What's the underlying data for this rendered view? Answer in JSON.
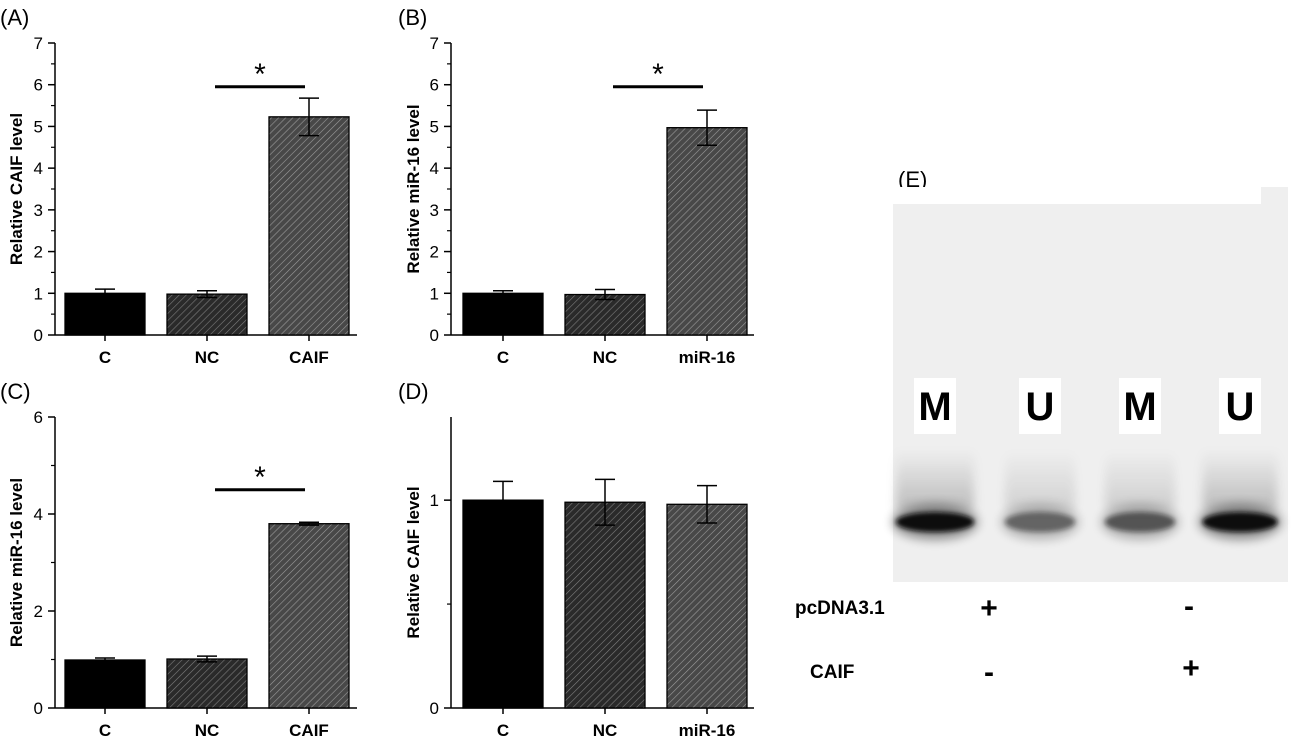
{
  "chart_data": [
    {
      "panel": "(A)",
      "type": "bar",
      "categories": [
        "C",
        "NC",
        "CAIF"
      ],
      "values": [
        1.0,
        0.98,
        5.23
      ],
      "errors": [
        0.1,
        0.08,
        0.45
      ],
      "ylabel": "Relative CAIF level",
      "ylim": [
        0,
        7
      ],
      "yticks": [
        "0",
        "1",
        "2",
        "3",
        "4",
        "5",
        "6",
        "7"
      ],
      "significance": {
        "from": 1,
        "to": 2,
        "label": "*",
        "level": 5.95
      }
    },
    {
      "panel": "(B)",
      "type": "bar",
      "categories": [
        "C",
        "NC",
        "miR-16"
      ],
      "values": [
        1.0,
        0.97,
        4.97
      ],
      "errors": [
        0.06,
        0.12,
        0.42
      ],
      "ylabel": "Relative miR-16 level",
      "ylim": [
        0,
        7
      ],
      "yticks": [
        "0",
        "1",
        "2",
        "3",
        "4",
        "5",
        "6",
        "7"
      ],
      "significance": {
        "from": 1,
        "to": 2,
        "label": "*",
        "level": 5.95
      }
    },
    {
      "panel": "(C)",
      "type": "bar",
      "categories": [
        "C",
        "NC",
        "CAIF"
      ],
      "values": [
        0.99,
        1.01,
        3.8
      ],
      "errors": [
        0.04,
        0.06,
        0.03
      ],
      "ylabel": "Relative miR-16 level",
      "ylim": [
        0,
        6
      ],
      "yticks": [
        "0",
        "2",
        "4",
        "6"
      ],
      "significance": {
        "from": 1,
        "to": 2,
        "label": "*",
        "level": 4.5
      }
    },
    {
      "panel": "(D)",
      "type": "bar",
      "categories": [
        "C",
        "NC",
        "miR-16"
      ],
      "values": [
        1.0,
        0.99,
        0.98
      ],
      "errors": [
        0.09,
        0.11,
        0.09
      ],
      "ylabel": "Relative CAIF level",
      "ylim": [
        0,
        1.4
      ],
      "yticks": [
        "0",
        "1"
      ],
      "significance": null
    }
  ],
  "gel": {
    "panel": "(E)",
    "lanes": [
      "M",
      "U",
      "M",
      "U"
    ],
    "band_intensity": [
      1.0,
      0.35,
      0.45,
      1.0
    ],
    "row_labels": [
      "pcDNA3.1",
      "CAIF"
    ],
    "signs": [
      [
        "+",
        "-"
      ],
      [
        "-",
        "+"
      ]
    ]
  },
  "colors": {
    "bar_c": "#000000",
    "bar_nc": "#2a2a2a",
    "bar_treat": "#4a4a4a",
    "hatch": "#8c8c8c",
    "gel_background": "#efefef",
    "gel_band": "#0d0d0d"
  }
}
